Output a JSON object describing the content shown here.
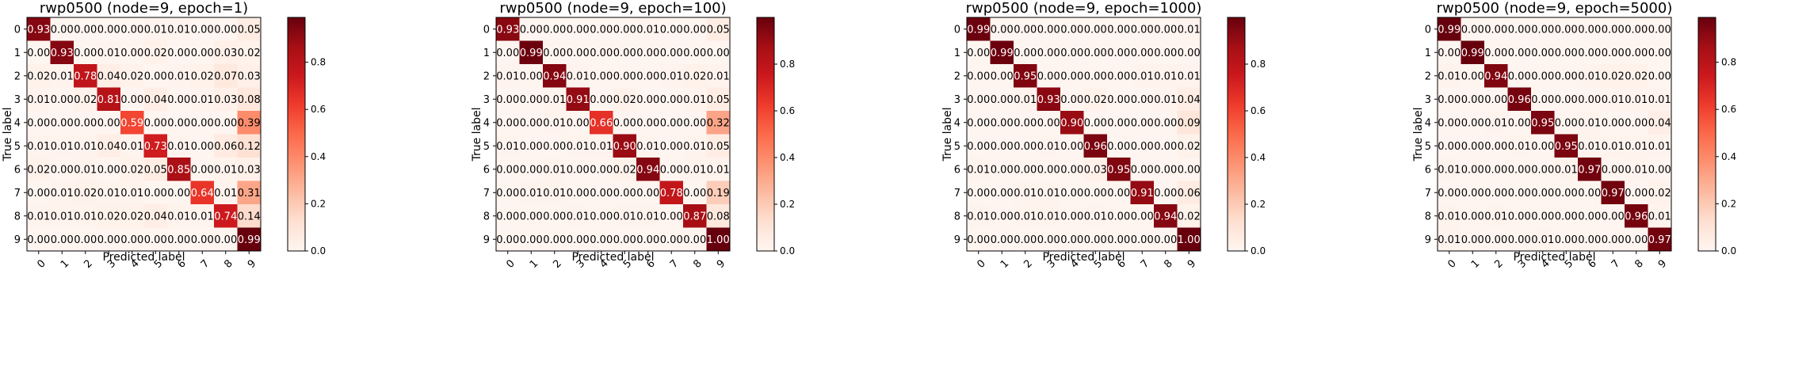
{
  "chart_data": [
    {
      "type": "heatmap",
      "title": "rwp0500 (node=9, epoch=1)",
      "xlabel": "Predicted label",
      "ylabel": "True label",
      "x_categories": [
        "0",
        "1",
        "2",
        "3",
        "4",
        "5",
        "6",
        "7",
        "8",
        "9"
      ],
      "y_categories": [
        "0",
        "1",
        "2",
        "3",
        "4",
        "5",
        "6",
        "7",
        "8",
        "9"
      ],
      "colormap": "Reds",
      "colorbar_range": [
        0,
        0.99
      ],
      "colorbar_ticks": [
        "0.0",
        "0.2",
        "0.4",
        "0.6",
        "0.8"
      ],
      "values": [
        [
          "0.93",
          "0.00",
          "0.00",
          "0.00",
          "0.00",
          "0.01",
          "0.01",
          "0.00",
          "0.00",
          "0.05"
        ],
        [
          "0.00",
          "0.93",
          "0.00",
          "0.01",
          "0.00",
          "0.02",
          "0.00",
          "0.00",
          "0.03",
          "0.02"
        ],
        [
          "0.02",
          "0.01",
          "0.78",
          "0.04",
          "0.02",
          "0.00",
          "0.01",
          "0.02",
          "0.07",
          "0.03"
        ],
        [
          "0.01",
          "0.00",
          "0.02",
          "0.81",
          "0.00",
          "0.04",
          "0.00",
          "0.01",
          "0.03",
          "0.08"
        ],
        [
          "0.00",
          "0.00",
          "0.00",
          "0.00",
          "0.59",
          "0.00",
          "0.00",
          "0.00",
          "0.00",
          "0.39"
        ],
        [
          "0.01",
          "0.01",
          "0.01",
          "0.04",
          "0.01",
          "0.73",
          "0.01",
          "0.00",
          "0.06",
          "0.12"
        ],
        [
          "0.02",
          "0.00",
          "0.01",
          "0.00",
          "0.02",
          "0.05",
          "0.85",
          "0.00",
          "0.01",
          "0.03"
        ],
        [
          "0.00",
          "0.01",
          "0.02",
          "0.01",
          "0.01",
          "0.00",
          "0.00",
          "0.64",
          "0.01",
          "0.31"
        ],
        [
          "0.01",
          "0.01",
          "0.01",
          "0.02",
          "0.02",
          "0.04",
          "0.01",
          "0.01",
          "0.74",
          "0.14"
        ],
        [
          "0.00",
          "0.00",
          "0.00",
          "0.00",
          "0.00",
          "0.00",
          "0.00",
          "0.00",
          "0.00",
          "0.99"
        ]
      ]
    },
    {
      "type": "heatmap",
      "title": "rwp0500 (node=9, epoch=100)",
      "xlabel": "Predicted label",
      "ylabel": "True label",
      "x_categories": [
        "0",
        "1",
        "2",
        "3",
        "4",
        "5",
        "6",
        "7",
        "8",
        "9"
      ],
      "y_categories": [
        "0",
        "1",
        "2",
        "3",
        "4",
        "5",
        "6",
        "7",
        "8",
        "9"
      ],
      "colormap": "Reds",
      "colorbar_range": [
        0,
        1.0
      ],
      "colorbar_ticks": [
        "0.0",
        "0.2",
        "0.4",
        "0.6",
        "0.8"
      ],
      "values": [
        [
          "0.93",
          "0.00",
          "0.00",
          "0.00",
          "0.00",
          "0.00",
          "0.01",
          "0.00",
          "0.00",
          "0.05"
        ],
        [
          "0.00",
          "0.99",
          "0.00",
          "0.00",
          "0.00",
          "0.00",
          "0.00",
          "0.00",
          "0.00",
          "0.00"
        ],
        [
          "0.01",
          "0.00",
          "0.94",
          "0.01",
          "0.00",
          "0.00",
          "0.00",
          "0.01",
          "0.02",
          "0.01"
        ],
        [
          "0.00",
          "0.00",
          "0.01",
          "0.91",
          "0.00",
          "0.02",
          "0.00",
          "0.00",
          "0.01",
          "0.05"
        ],
        [
          "0.00",
          "0.00",
          "0.01",
          "0.00",
          "0.66",
          "0.00",
          "0.00",
          "0.00",
          "0.00",
          "0.32"
        ],
        [
          "0.01",
          "0.00",
          "0.00",
          "0.01",
          "0.01",
          "0.90",
          "0.01",
          "0.00",
          "0.01",
          "0.05"
        ],
        [
          "0.00",
          "0.00",
          "0.01",
          "0.00",
          "0.00",
          "0.02",
          "0.94",
          "0.00",
          "0.01",
          "0.01"
        ],
        [
          "0.00",
          "0.01",
          "0.01",
          "0.00",
          "0.00",
          "0.00",
          "0.00",
          "0.78",
          "0.00",
          "0.19"
        ],
        [
          "0.00",
          "0.00",
          "0.00",
          "0.01",
          "0.00",
          "0.01",
          "0.01",
          "0.00",
          "0.87",
          "0.08"
        ],
        [
          "0.00",
          "0.00",
          "0.00",
          "0.00",
          "0.00",
          "0.00",
          "0.00",
          "0.00",
          "0.00",
          "1.00"
        ]
      ]
    },
    {
      "type": "heatmap",
      "title": "rwp0500 (node=9, epoch=1000)",
      "xlabel": "Predicted label",
      "ylabel": "True label",
      "x_categories": [
        "0",
        "1",
        "2",
        "3",
        "4",
        "5",
        "6",
        "7",
        "8",
        "9"
      ],
      "y_categories": [
        "0",
        "1",
        "2",
        "3",
        "4",
        "5",
        "6",
        "7",
        "8",
        "9"
      ],
      "colormap": "Reds",
      "colorbar_range": [
        0,
        1.0
      ],
      "colorbar_ticks": [
        "0.0",
        "0.2",
        "0.4",
        "0.6",
        "0.8"
      ],
      "values": [
        [
          "0.99",
          "0.00",
          "0.00",
          "0.00",
          "0.00",
          "0.00",
          "0.00",
          "0.00",
          "0.00",
          "0.01"
        ],
        [
          "0.00",
          "0.99",
          "0.00",
          "0.00",
          "0.00",
          "0.00",
          "0.00",
          "0.00",
          "0.00",
          "0.00"
        ],
        [
          "0.00",
          "0.00",
          "0.95",
          "0.00",
          "0.00",
          "0.00",
          "0.00",
          "0.01",
          "0.01",
          "0.01"
        ],
        [
          "0.00",
          "0.00",
          "0.01",
          "0.93",
          "0.00",
          "0.02",
          "0.00",
          "0.00",
          "0.01",
          "0.04"
        ],
        [
          "0.00",
          "0.00",
          "0.00",
          "0.00",
          "0.90",
          "0.00",
          "0.00",
          "0.00",
          "0.00",
          "0.09"
        ],
        [
          "0.00",
          "0.00",
          "0.00",
          "0.01",
          "0.00",
          "0.96",
          "0.00",
          "0.00",
          "0.00",
          "0.02"
        ],
        [
          "0.01",
          "0.00",
          "0.00",
          "0.00",
          "0.00",
          "0.03",
          "0.95",
          "0.00",
          "0.00",
          "0.00"
        ],
        [
          "0.00",
          "0.00",
          "0.01",
          "0.01",
          "0.00",
          "0.00",
          "0.00",
          "0.91",
          "0.00",
          "0.06"
        ],
        [
          "0.01",
          "0.00",
          "0.01",
          "0.01",
          "0.00",
          "0.01",
          "0.00",
          "0.00",
          "0.94",
          "0.02"
        ],
        [
          "0.00",
          "0.00",
          "0.00",
          "0.00",
          "0.00",
          "0.00",
          "0.00",
          "0.00",
          "0.00",
          "1.00"
        ]
      ]
    },
    {
      "type": "heatmap",
      "title": "rwp0500 (node=9, epoch=5000)",
      "xlabel": "Predicted label",
      "ylabel": "True label",
      "x_categories": [
        "0",
        "1",
        "2",
        "3",
        "4",
        "5",
        "6",
        "7",
        "8",
        "9"
      ],
      "y_categories": [
        "0",
        "1",
        "2",
        "3",
        "4",
        "5",
        "6",
        "7",
        "8",
        "9"
      ],
      "colormap": "Reds",
      "colorbar_range": [
        0,
        0.99
      ],
      "colorbar_ticks": [
        "0.0",
        "0.2",
        "0.4",
        "0.6",
        "0.8"
      ],
      "values": [
        [
          "0.99",
          "0.00",
          "0.00",
          "0.00",
          "0.00",
          "0.00",
          "0.00",
          "0.00",
          "0.00",
          "0.00"
        ],
        [
          "0.00",
          "0.99",
          "0.00",
          "0.00",
          "0.00",
          "0.00",
          "0.00",
          "0.00",
          "0.00",
          "0.00"
        ],
        [
          "0.01",
          "0.00",
          "0.94",
          "0.00",
          "0.00",
          "0.00",
          "0.01",
          "0.02",
          "0.02",
          "0.00"
        ],
        [
          "0.00",
          "0.00",
          "0.00",
          "0.96",
          "0.00",
          "0.00",
          "0.00",
          "0.01",
          "0.01",
          "0.01"
        ],
        [
          "0.00",
          "0.00",
          "0.01",
          "0.00",
          "0.95",
          "0.00",
          "0.01",
          "0.00",
          "0.00",
          "0.04"
        ],
        [
          "0.00",
          "0.00",
          "0.00",
          "0.01",
          "0.00",
          "0.95",
          "0.01",
          "0.01",
          "0.01",
          "0.01"
        ],
        [
          "0.01",
          "0.00",
          "0.00",
          "0.00",
          "0.00",
          "0.01",
          "0.97",
          "0.00",
          "0.01",
          "0.00"
        ],
        [
          "0.00",
          "0.00",
          "0.00",
          "0.00",
          "0.00",
          "0.00",
          "0.00",
          "0.97",
          "0.00",
          "0.02"
        ],
        [
          "0.01",
          "0.00",
          "0.01",
          "0.00",
          "0.00",
          "0.00",
          "0.00",
          "0.00",
          "0.96",
          "0.01"
        ],
        [
          "0.01",
          "0.00",
          "0.00",
          "0.00",
          "0.01",
          "0.00",
          "0.00",
          "0.00",
          "0.00",
          "0.97"
        ]
      ]
    }
  ]
}
